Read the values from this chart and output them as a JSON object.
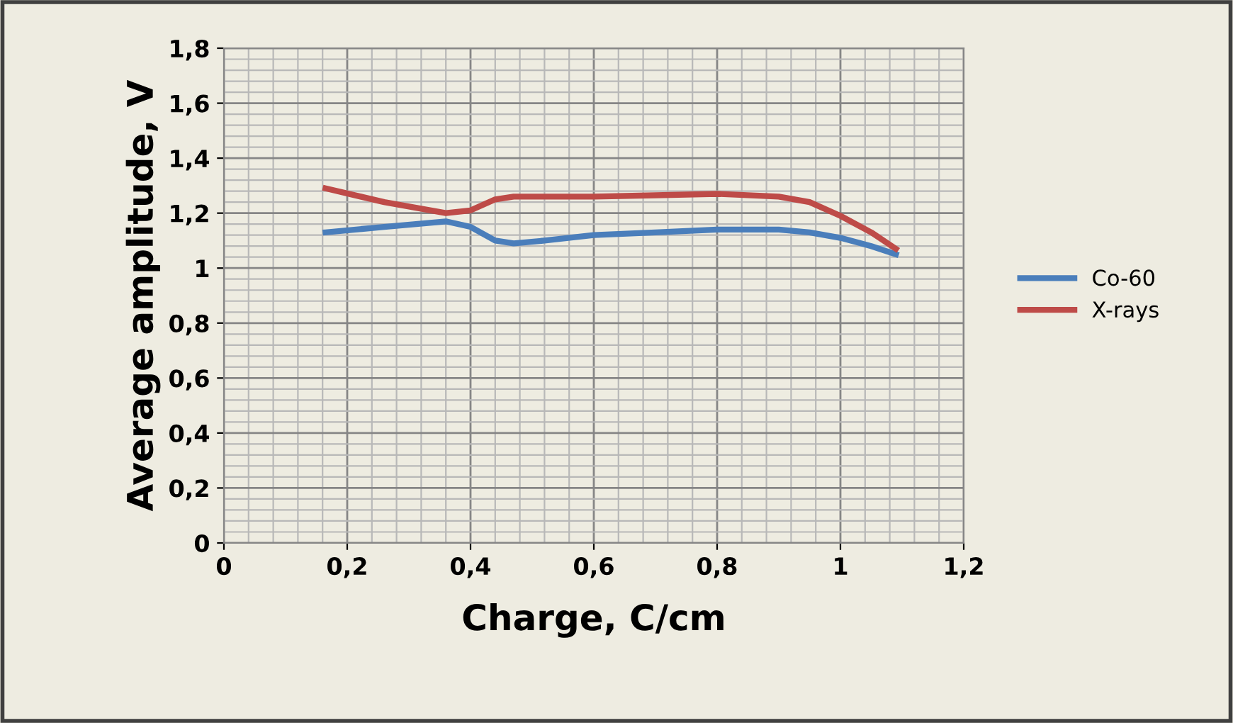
{
  "chart_data": {
    "type": "line",
    "xlabel": "Charge, C/cm",
    "ylabel": "Average amplitude, V",
    "xlim": [
      0,
      1.2
    ],
    "ylim": [
      0,
      1.8
    ],
    "xticks": [
      0,
      {
        "value": 0.2,
        "label": "0,2"
      },
      {
        "value": 0.4,
        "label": "0,4"
      },
      {
        "value": 0.6,
        "label": "0,6"
      },
      {
        "value": 0.8,
        "label": "0,8"
      },
      1,
      {
        "value": 1.2,
        "label": "1,2"
      }
    ],
    "yticks": [
      0,
      {
        "value": 0.2,
        "label": "0,2"
      },
      {
        "value": 0.4,
        "label": "0,4"
      },
      {
        "value": 0.6,
        "label": "0,6"
      },
      {
        "value": 0.8,
        "label": "0,8"
      },
      1,
      {
        "value": 1.2,
        "label": "1,2"
      },
      {
        "value": 1.4,
        "label": "1,4"
      },
      {
        "value": 1.6,
        "label": "1,6"
      },
      {
        "value": 1.8,
        "label": "1,8"
      }
    ],
    "grid": true,
    "legend": "right",
    "marker": "none",
    "line_style": "solid",
    "series": [
      {
        "name": "Co-60",
        "color": "#4a7ebb",
        "x": [
          0.165,
          0.26,
          0.36,
          0.4,
          0.44,
          0.47,
          0.52,
          0.6,
          0.7,
          0.8,
          0.9,
          0.95,
          1.0,
          1.05,
          1.09
        ],
        "values": [
          1.13,
          1.15,
          1.17,
          1.15,
          1.1,
          1.09,
          1.1,
          1.12,
          1.13,
          1.14,
          1.14,
          1.13,
          1.11,
          1.08,
          1.05
        ]
      },
      {
        "name": "X-rays",
        "color": "#be4b48",
        "x": [
          0.165,
          0.26,
          0.36,
          0.4,
          0.44,
          0.47,
          0.52,
          0.6,
          0.7,
          0.8,
          0.9,
          0.95,
          1.0,
          1.05,
          1.09
        ],
        "values": [
          1.29,
          1.24,
          1.2,
          1.21,
          1.25,
          1.26,
          1.26,
          1.26,
          1.265,
          1.27,
          1.26,
          1.24,
          1.19,
          1.13,
          1.07
        ]
      }
    ]
  }
}
